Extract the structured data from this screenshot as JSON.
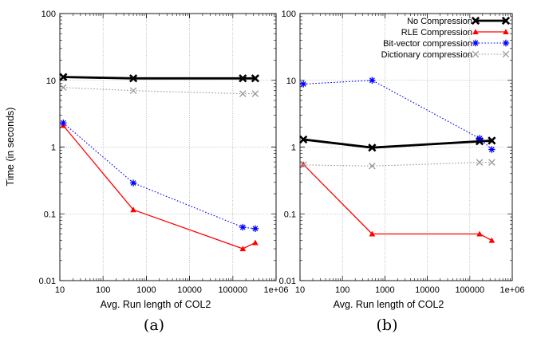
{
  "figure": {
    "panels": [
      {
        "id": "a",
        "caption": "(a)",
        "ylabel": "Time (in seconds)",
        "xlabel": "Avg. Run length of COL2"
      },
      {
        "id": "b",
        "caption": "(b)",
        "ylabel": "",
        "xlabel": "Avg. Run length of COL2"
      }
    ]
  },
  "chart_data": [
    {
      "type": "line",
      "caption": "(a)",
      "xlabel": "Avg. Run length of COL2",
      "ylabel": "Time (in seconds)",
      "xscale": "log",
      "yscale": "log",
      "xlim": [
        10,
        1000000
      ],
      "ylim": [
        0.01,
        100
      ],
      "xticks": [
        "10",
        "100",
        "1000",
        "10000",
        "100000",
        "1e+06"
      ],
      "yticks": [
        "0.01",
        "0.1",
        "1",
        "10",
        "100"
      ],
      "grid": true,
      "legend": "none",
      "series": [
        {
          "name": "No Compression",
          "color": "#000000",
          "style": "solid",
          "marker": "x",
          "x": [
            12,
            500,
            170000,
            330000
          ],
          "y": [
            11.2,
            10.7,
            10.7,
            10.7
          ]
        },
        {
          "name": "RLE Compression",
          "color": "#ff0000",
          "style": "solid",
          "marker": "triangle",
          "x": [
            12,
            500,
            170000,
            330000
          ],
          "y": [
            2.1,
            0.115,
            0.03,
            0.037
          ]
        },
        {
          "name": "Bit-vector compression",
          "color": "#0000ff",
          "style": "dotted",
          "marker": "star",
          "x": [
            12,
            500,
            170000,
            330000
          ],
          "y": [
            2.3,
            0.29,
            0.063,
            0.06
          ]
        },
        {
          "name": "Dictionary compression",
          "color": "#999999",
          "style": "dotted",
          "marker": "x",
          "x": [
            12,
            500,
            170000,
            330000
          ],
          "y": [
            7.8,
            7.0,
            6.3,
            6.3
          ]
        }
      ]
    },
    {
      "type": "line",
      "caption": "(b)",
      "xlabel": "Avg. Run length of COL2",
      "ylabel": "",
      "xscale": "log",
      "yscale": "log",
      "xlim": [
        10,
        1000000
      ],
      "ylim": [
        0.01,
        100
      ],
      "xticks": [
        "10",
        "100",
        "1000",
        "10000",
        "100000",
        "1e+06"
      ],
      "yticks": [
        "0.01",
        "0.1",
        "1",
        "10",
        "100"
      ],
      "grid": true,
      "legend": "top-right",
      "series": [
        {
          "name": "No Compression",
          "color": "#000000",
          "style": "solid",
          "marker": "x",
          "x": [
            12,
            500,
            170000,
            330000
          ],
          "y": [
            1.3,
            0.98,
            1.22,
            1.25
          ]
        },
        {
          "name": "RLE Compression",
          "color": "#ff0000",
          "style": "solid",
          "marker": "triangle",
          "x": [
            12,
            500,
            170000,
            330000
          ],
          "y": [
            0.55,
            0.05,
            0.05,
            0.04
          ]
        },
        {
          "name": "Bit-vector compression",
          "color": "#0000ff",
          "style": "dotted",
          "marker": "star",
          "x": [
            12,
            500,
            170000,
            330000
          ],
          "y": [
            8.8,
            10.0,
            1.35,
            0.92
          ]
        },
        {
          "name": "Dictionary compression",
          "color": "#999999",
          "style": "dotted",
          "marker": "x",
          "x": [
            12,
            500,
            170000,
            330000
          ],
          "y": [
            0.54,
            0.52,
            0.59,
            0.59
          ]
        }
      ]
    }
  ]
}
